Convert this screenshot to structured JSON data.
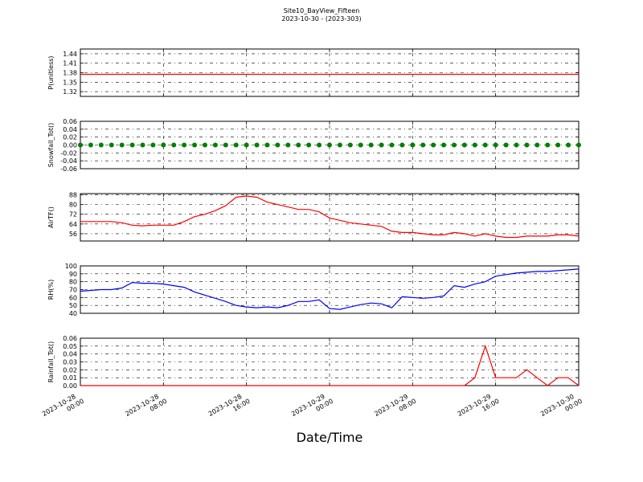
{
  "title": "Site10_BayView_Fifteen",
  "subtitle": "2023-10-30 - (2023-303)",
  "xlabel": "Date/Time",
  "xlim": [
    "2023-10-28 00:00",
    "2023-10-30 00:00"
  ],
  "xticks": [
    "2023-10-28 00:00",
    "2023-10-28 08:00",
    "2023-10-28 16:00",
    "2023-10-29 00:00",
    "2023-10-29 08:00",
    "2023-10-29 16:00",
    "2023-10-30 00:00"
  ],
  "x": [
    "2023-10-28 00:00",
    "2023-10-28 01:00",
    "2023-10-28 02:00",
    "2023-10-28 03:00",
    "2023-10-28 04:00",
    "2023-10-28 05:00",
    "2023-10-28 06:00",
    "2023-10-28 07:00",
    "2023-10-28 08:00",
    "2023-10-28 09:00",
    "2023-10-28 10:00",
    "2023-10-28 11:00",
    "2023-10-28 12:00",
    "2023-10-28 13:00",
    "2023-10-28 14:00",
    "2023-10-28 15:00",
    "2023-10-28 16:00",
    "2023-10-28 17:00",
    "2023-10-28 18:00",
    "2023-10-28 19:00",
    "2023-10-28 20:00",
    "2023-10-28 21:00",
    "2023-10-28 22:00",
    "2023-10-28 23:00",
    "2023-10-29 00:00",
    "2023-10-29 01:00",
    "2023-10-29 02:00",
    "2023-10-29 03:00",
    "2023-10-29 04:00",
    "2023-10-29 05:00",
    "2023-10-29 06:00",
    "2023-10-29 07:00",
    "2023-10-29 08:00",
    "2023-10-29 09:00",
    "2023-10-29 10:00",
    "2023-10-29 11:00",
    "2023-10-29 12:00",
    "2023-10-29 13:00",
    "2023-10-29 14:00",
    "2023-10-29 15:00",
    "2023-10-29 16:00",
    "2023-10-29 17:00",
    "2023-10-29 18:00",
    "2023-10-29 19:00",
    "2023-10-29 20:00",
    "2023-10-29 21:00",
    "2023-10-29 22:00",
    "2023-10-29 23:00",
    "2023-10-30 00:00"
  ],
  "chart_data": [
    {
      "type": "line",
      "ylabel": "P(unitless)",
      "ylim": [
        1.305,
        1.455
      ],
      "yticks": [
        1.32,
        1.35,
        1.38,
        1.41,
        1.44
      ],
      "grid": true,
      "series": [
        {
          "color": "#ff0000",
          "values": [
            1.375,
            1.375,
            1.375,
            1.375,
            1.375,
            1.375,
            1.375,
            1.375,
            1.375,
            1.375,
            1.375,
            1.375,
            1.375,
            1.375,
            1.375,
            1.375,
            1.375,
            1.375,
            1.375,
            1.375,
            1.375,
            1.375,
            1.375,
            1.375,
            1.375,
            1.375,
            1.375,
            1.375,
            1.375,
            1.375,
            1.375,
            1.375,
            1.375,
            1.375,
            1.375,
            1.375,
            1.375,
            1.375,
            1.375,
            1.375,
            1.375,
            1.375,
            1.375,
            1.375,
            1.375,
            1.375,
            1.375,
            1.375,
            1.375
          ]
        }
      ]
    },
    {
      "type": "scatter",
      "ylabel": "Snowfall_Tot()",
      "ylim": [
        -0.06,
        0.06
      ],
      "yticks": [
        -0.06,
        -0.04,
        -0.02,
        {
          "value": 0,
          "label": "0.00"
        },
        0.02,
        0.04,
        0.06
      ],
      "grid": true,
      "series": [
        {
          "color": "#008000",
          "values": [
            0,
            0,
            0,
            0,
            0,
            0,
            0,
            0,
            0,
            0,
            0,
            0,
            0,
            0,
            0,
            0,
            0,
            0,
            0,
            0,
            0,
            0,
            0,
            0,
            0,
            0,
            0,
            0,
            0,
            0,
            0,
            0,
            0,
            0,
            0,
            0,
            0,
            0,
            0,
            0,
            0,
            0,
            0,
            0,
            0,
            0,
            0,
            0,
            0
          ]
        }
      ]
    },
    {
      "type": "line",
      "ylabel": "AirTF()",
      "ylim": [
        50,
        89
      ],
      "yticks": [
        56,
        64,
        72,
        80,
        88
      ],
      "grid": true,
      "series": [
        {
          "color": "#ff0000",
          "values": [
            66,
            66,
            66,
            66,
            65,
            63,
            62.5,
            63,
            63,
            63,
            66,
            70,
            72,
            75,
            79,
            86,
            87,
            86,
            82,
            80,
            78,
            76,
            76,
            74,
            69,
            67,
            65,
            64,
            63,
            62,
            58,
            57,
            57,
            56,
            55,
            55,
            57,
            56,
            54,
            56,
            54,
            53,
            53,
            54,
            54,
            54,
            55,
            55,
            54
          ]
        }
      ]
    },
    {
      "type": "line",
      "ylabel": "RH(%)",
      "ylim": [
        40,
        100
      ],
      "yticks": [
        40,
        50,
        60,
        70,
        80,
        90,
        100
      ],
      "grid": true,
      "series": [
        {
          "color": "#0000ff",
          "values": [
            68,
            69,
            70,
            70,
            72,
            79,
            78,
            78,
            77,
            75,
            73,
            67,
            63,
            59,
            55,
            50,
            48,
            47,
            48,
            47,
            50,
            55,
            55,
            57,
            46,
            45,
            48,
            51,
            53,
            52,
            47,
            61,
            60,
            59,
            60,
            62,
            75,
            73,
            77,
            80,
            87,
            89,
            91,
            92,
            93,
            93,
            94,
            95,
            96
          ]
        }
      ]
    },
    {
      "type": "line",
      "ylabel": "Rainfall_Tot()",
      "ylim": [
        0,
        0.06
      ],
      "yticks": [
        {
          "value": 0,
          "label": "0.00"
        },
        0.01,
        0.02,
        0.03,
        0.04,
        0.05,
        0.06
      ],
      "grid": true,
      "series": [
        {
          "color": "#ff0000",
          "values": [
            0,
            0,
            0,
            0,
            0,
            0,
            0,
            0,
            0,
            0,
            0,
            0,
            0,
            0,
            0,
            0,
            0,
            0,
            0,
            0,
            0,
            0,
            0,
            0,
            0,
            0,
            0,
            0,
            0,
            0,
            0,
            0,
            0,
            0,
            0,
            0,
            0,
            0,
            0.01,
            0.05,
            0.01,
            0.01,
            0.01,
            0.02,
            0.01,
            0,
            0.01,
            0.01,
            0
          ]
        }
      ]
    }
  ]
}
